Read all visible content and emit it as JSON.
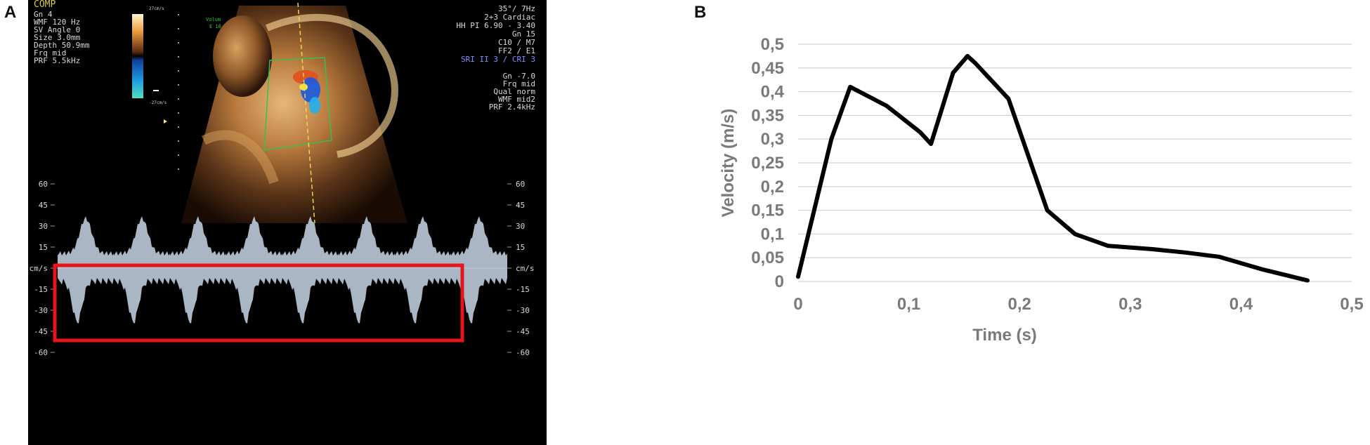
{
  "panels": {
    "a_label": "A",
    "b_label": "B"
  },
  "ultrasound": {
    "top_left_title": "COMP",
    "settings_left": [
      "Gn 4",
      "WMF 120 Hz",
      "SV Angle 0",
      "Size 3.0mm",
      "Depth 50.9mm",
      "Frq mid",
      "PRF 5.5kHz"
    ],
    "settings_right_top": [
      "35°/ 7Hz",
      "2+3 Cardiac",
      "HH PI 6.90 - 3.40",
      "Gn 15",
      "C10 / M7",
      "FF2 / E1"
    ],
    "settings_right_blue": "SRI II 3 / CRI 3",
    "settings_right_bottom": [
      "Gn -7.0",
      "Frq mid",
      "Qual norm",
      "WMF mid2",
      "PRF 2.4kHz"
    ],
    "color_scale_top": "27cm/s",
    "color_scale_bottom": "-27cm/s",
    "volume_label": [
      "Volum",
      "E 10"
    ],
    "doppler_ticks_left": [
      "60",
      "45",
      "30",
      "15",
      "cm/s",
      "-15",
      "-30",
      "-45",
      "-60"
    ],
    "doppler_ticks_right": [
      "60",
      "45",
      "30",
      "15",
      "cm/s",
      "-15",
      "-30",
      "-45",
      "-60"
    ],
    "colors": {
      "highlight_box": "#e8141b",
      "background": "#000000",
      "spectrum": "#c9d6e6"
    }
  },
  "chart_data": {
    "type": "line",
    "title": "",
    "xlabel": "Time (s)",
    "ylabel": "Velocity (m/s)",
    "xlim": [
      0,
      0.5
    ],
    "ylim": [
      0,
      0.5
    ],
    "x_ticks": [
      "0",
      "0,1",
      "0,2",
      "0,3",
      "0,4",
      "0,5"
    ],
    "y_ticks": [
      "0",
      "0,05",
      "0,1",
      "0,15",
      "0,2",
      "0,25",
      "0,3",
      "0,35",
      "0,4",
      "0,45",
      "0,5"
    ],
    "grid": "horizontal",
    "series": [
      {
        "x": [
          0,
          0.03,
          0.047,
          0.08,
          0.11,
          0.12,
          0.14,
          0.153,
          0.16,
          0.19,
          0.225,
          0.25,
          0.28,
          0.32,
          0.35,
          0.38,
          0.42,
          0.46
        ],
        "y": [
          0.01,
          0.3,
          0.41,
          0.37,
          0.315,
          0.29,
          0.44,
          0.475,
          0.46,
          0.385,
          0.15,
          0.1,
          0.075,
          0.068,
          0.061,
          0.052,
          0.025,
          0.002
        ],
        "color": "#000000"
      }
    ]
  }
}
